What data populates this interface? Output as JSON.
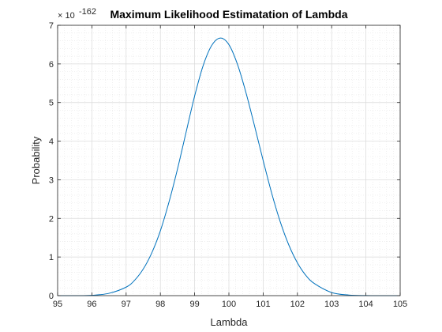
{
  "chart_data": {
    "type": "line",
    "title": "Maximum Likelihood Estimatation of Lambda",
    "xlabel": "Lambda",
    "ylabel": "Probability",
    "xlim": [
      95,
      105
    ],
    "ylim": [
      0,
      7
    ],
    "y_exponent_label": "× 10",
    "y_exponent_value": "-162",
    "xticks": [
      "95",
      "96",
      "97",
      "98",
      "99",
      "100",
      "101",
      "102",
      "103",
      "104",
      "105"
    ],
    "yticks": [
      "0",
      "1",
      "2",
      "3",
      "4",
      "5",
      "6",
      "7"
    ],
    "grid": true,
    "minor_grid": true,
    "series": [
      {
        "color": "#0072BD",
        "x": [
          95,
          95.5,
          96,
          96.5,
          97,
          97.25,
          97.5,
          97.75,
          98,
          98.25,
          98.5,
          98.75,
          99,
          99.25,
          99.5,
          99.75,
          100,
          100.25,
          100.5,
          100.75,
          101,
          101.25,
          101.5,
          101.75,
          102,
          102.25,
          102.5,
          103,
          103.5,
          104,
          104.5,
          105
        ],
        "y": [
          0.0,
          0.0,
          0.008,
          0.06,
          0.22,
          0.4,
          0.69,
          1.11,
          1.68,
          2.42,
          3.28,
          4.23,
          5.17,
          5.96,
          6.48,
          6.67,
          6.5,
          5.99,
          5.25,
          4.39,
          3.5,
          2.65,
          1.91,
          1.31,
          0.85,
          0.52,
          0.31,
          0.08,
          0.016,
          0.002,
          0.0,
          0.0
        ]
      }
    ]
  }
}
